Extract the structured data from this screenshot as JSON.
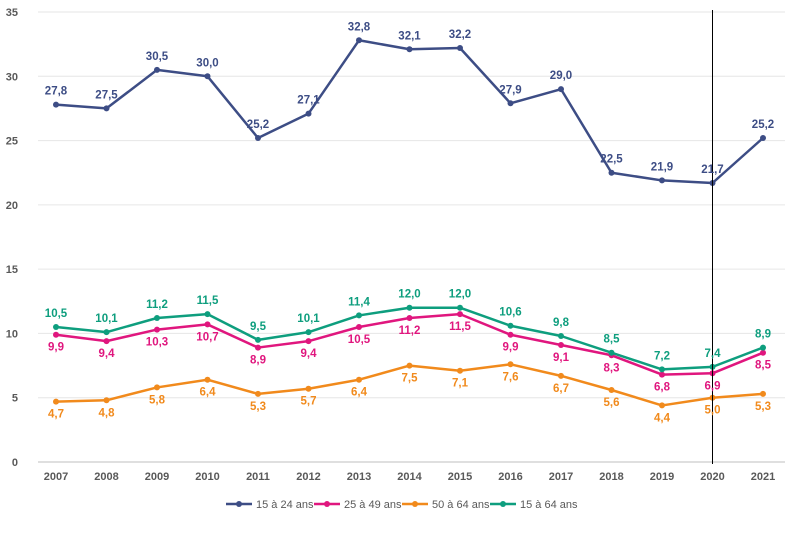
{
  "chart_data": {
    "type": "line",
    "x": [
      "2007",
      "2008",
      "2009",
      "2010",
      "2011",
      "2012",
      "2013",
      "2014",
      "2015",
      "2016",
      "2017",
      "2018",
      "2019",
      "2020",
      "2021"
    ],
    "ylim": [
      0,
      35
    ],
    "yticks": [
      0,
      5,
      10,
      15,
      20,
      25,
      30,
      35
    ],
    "grid": true,
    "legend_position": "bottom",
    "marker_year": "2020",
    "series": [
      {
        "name": "15 à 24 ans",
        "color": "#3D4D85",
        "values": [
          27.8,
          27.5,
          30.5,
          30.0,
          25.2,
          27.1,
          32.8,
          32.1,
          32.2,
          27.9,
          29.0,
          22.5,
          21.9,
          21.7,
          25.2
        ],
        "labels": [
          "27,8",
          "27,5",
          "30,5",
          "30,0",
          "25,2",
          "27,1",
          "32,8",
          "32,1",
          "32,2",
          "27,9",
          "29,0",
          "22,5",
          "21,9",
          "21,7",
          "25,2"
        ]
      },
      {
        "name": "25 à 49 ans",
        "color": "#E0167E",
        "values": [
          9.9,
          9.4,
          10.3,
          10.7,
          8.9,
          9.4,
          10.5,
          11.2,
          11.5,
          9.9,
          9.1,
          8.3,
          6.8,
          6.9,
          8.5
        ],
        "labels": [
          "9,9",
          "9,4",
          "10,3",
          "10,7",
          "8,9",
          "9,4",
          "10,5",
          "11,2",
          "11,5",
          "9,9",
          "9,1",
          "8,3",
          "6,8",
          "6,9",
          "8,5"
        ]
      },
      {
        "name": "50 à 64 ans",
        "color": "#F18A1C",
        "values": [
          4.7,
          4.8,
          5.8,
          6.4,
          5.3,
          5.7,
          6.4,
          7.5,
          7.1,
          7.6,
          6.7,
          5.6,
          4.4,
          5.0,
          5.3
        ],
        "labels": [
          "4,7",
          "4,8",
          "5,8",
          "6,4",
          "5,3",
          "5,7",
          "6,4",
          "7,5",
          "7,1",
          "7,6",
          "6,7",
          "5,6",
          "4,4",
          "5,0",
          "5,3"
        ]
      },
      {
        "name": "15 à 64 ans",
        "color": "#0E9E7E",
        "values": [
          10.5,
          10.1,
          11.2,
          11.5,
          9.5,
          10.1,
          11.4,
          12.0,
          12.0,
          10.6,
          9.8,
          8.5,
          7.2,
          7.4,
          8.9
        ],
        "labels": [
          "10,5",
          "10,1",
          "11,2",
          "11,5",
          "9,5",
          "10,1",
          "11,4",
          "12,0",
          "12,0",
          "10,6",
          "9,8",
          "8,5",
          "7,2",
          "7,4",
          "8,9"
        ]
      }
    ]
  }
}
